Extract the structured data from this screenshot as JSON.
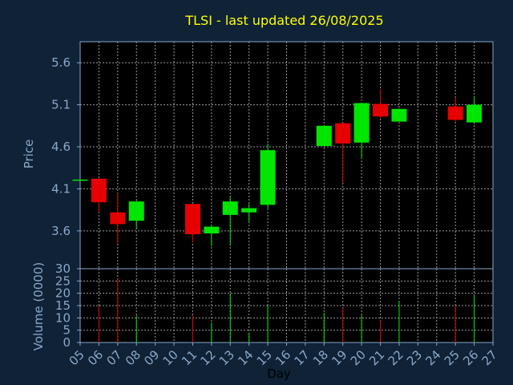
{
  "chart_data": {
    "type": "candlestick",
    "title": "TLSI - last updated 26/08/2025",
    "xlabel": "Day",
    "ylabel_price": "Price",
    "ylabel_volume": "Volume (0000)",
    "price_ylim": [
      3.15,
      5.85
    ],
    "price_ticks": [
      3.6,
      4.1,
      4.6,
      5.1,
      5.6
    ],
    "volume_ylim": [
      0,
      30
    ],
    "volume_ticks": [
      0,
      5,
      10,
      15,
      20,
      25,
      30
    ],
    "x_ticks": [
      "05",
      "06",
      "07",
      "08",
      "09",
      "10",
      "11",
      "12",
      "13",
      "14",
      "15",
      "16",
      "17",
      "18",
      "19",
      "20",
      "21",
      "22",
      "23",
      "24",
      "25",
      "26",
      "27"
    ],
    "grid": true,
    "colors": {
      "background": "#0f2236",
      "up": "#00e600",
      "down": "#e60000",
      "title": "#ffff00",
      "axis_text": "#8aa8c8",
      "grid": "#9a9a9a"
    },
    "candles": [
      {
        "day": "05",
        "open": 4.21,
        "high": 4.21,
        "low": 4.21,
        "close": 4.21,
        "volume": 0
      },
      {
        "day": "06",
        "open": 4.22,
        "high": 4.22,
        "low": 3.82,
        "close": 3.94,
        "volume": 15
      },
      {
        "day": "07",
        "open": 3.82,
        "high": 4.05,
        "low": 3.45,
        "close": 3.68,
        "volume": 26
      },
      {
        "day": "08",
        "open": 3.72,
        "high": 3.96,
        "low": 3.62,
        "close": 3.95,
        "volume": 11
      },
      {
        "day": "11",
        "open": 3.92,
        "high": 3.92,
        "low": 3.46,
        "close": 3.56,
        "volume": 11
      },
      {
        "day": "12",
        "open": 3.57,
        "high": 3.67,
        "low": 3.42,
        "close": 3.65,
        "volume": 8
      },
      {
        "day": "13",
        "open": 3.79,
        "high": 4.0,
        "low": 3.43,
        "close": 3.95,
        "volume": 20
      },
      {
        "day": "14",
        "open": 3.82,
        "high": 3.92,
        "low": 3.7,
        "close": 3.87,
        "volume": 4
      },
      {
        "day": "15",
        "open": 3.91,
        "high": 4.64,
        "low": 3.87,
        "close": 4.56,
        "volume": 15
      },
      {
        "day": "18",
        "open": 4.61,
        "high": 4.85,
        "low": 4.6,
        "close": 4.85,
        "volume": 12
      },
      {
        "day": "19",
        "open": 4.88,
        "high": 4.88,
        "low": 4.17,
        "close": 4.64,
        "volume": 14
      },
      {
        "day": "20",
        "open": 4.65,
        "high": 5.12,
        "low": 4.46,
        "close": 5.12,
        "volume": 11
      },
      {
        "day": "21",
        "open": 5.11,
        "high": 5.28,
        "low": 4.94,
        "close": 4.96,
        "volume": 9
      },
      {
        "day": "22",
        "open": 4.9,
        "high": 5.06,
        "low": 4.9,
        "close": 5.05,
        "volume": 17
      },
      {
        "day": "25",
        "open": 5.08,
        "high": 5.18,
        "low": 4.9,
        "close": 4.92,
        "volume": 15
      },
      {
        "day": "26",
        "open": 4.89,
        "high": 5.2,
        "low": 4.87,
        "close": 5.1,
        "volume": 19
      }
    ]
  }
}
